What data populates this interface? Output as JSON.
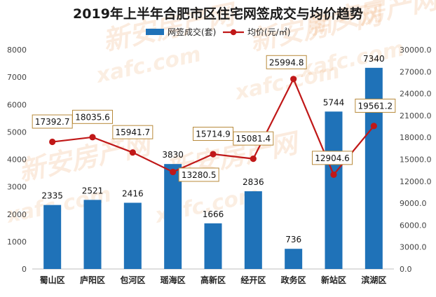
{
  "chart_data": {
    "type": "bar",
    "title": "2019年上半年合肥市区住宅网签成交与均价趋势",
    "categories": [
      "蜀山区",
      "庐阳区",
      "包河区",
      "瑶海区",
      "高新区",
      "经开区",
      "政务区",
      "新站区",
      "滨湖区"
    ],
    "series": [
      {
        "name": "网签成交(套)",
        "type": "bar",
        "axis": "left",
        "color": "#1f72b8",
        "values": [
          2335,
          2521,
          2416,
          3830,
          1666,
          2836,
          736,
          5744,
          7340
        ],
        "labels": [
          "2335",
          "2521",
          "2416",
          "3830",
          "1666",
          "2836",
          "736",
          "5744",
          "7340"
        ]
      },
      {
        "name": "均价(元/㎡)",
        "type": "line",
        "axis": "right",
        "color": "#c01818",
        "values": [
          17392.7,
          18035.6,
          15941.7,
          13280.5,
          15714.9,
          15081.4,
          25994.8,
          12904.6,
          19561.2
        ],
        "labels": [
          "17392.7",
          "18035.6",
          "15941.7",
          "13280.5",
          "15714.9",
          "15081.4",
          "25994.8",
          "12904.6",
          "19561.2"
        ]
      }
    ],
    "y_left": {
      "min": 0,
      "max": 8000,
      "ticks": [
        "0",
        "1000",
        "2000",
        "3000",
        "4000",
        "5000",
        "6000",
        "7000",
        "8000"
      ]
    },
    "y_right": {
      "min": 0,
      "max": 30000,
      "ticks": [
        "0.0",
        "3000.0",
        "6000.0",
        "9000.0",
        "12000.0",
        "15000.0",
        "18000.0",
        "21000.0",
        "24000.0",
        "27000.0",
        "30000.0"
      ]
    },
    "grid": false,
    "legend_position": "top-center",
    "watermark": [
      "新安房产网",
      "xafc.com"
    ]
  }
}
